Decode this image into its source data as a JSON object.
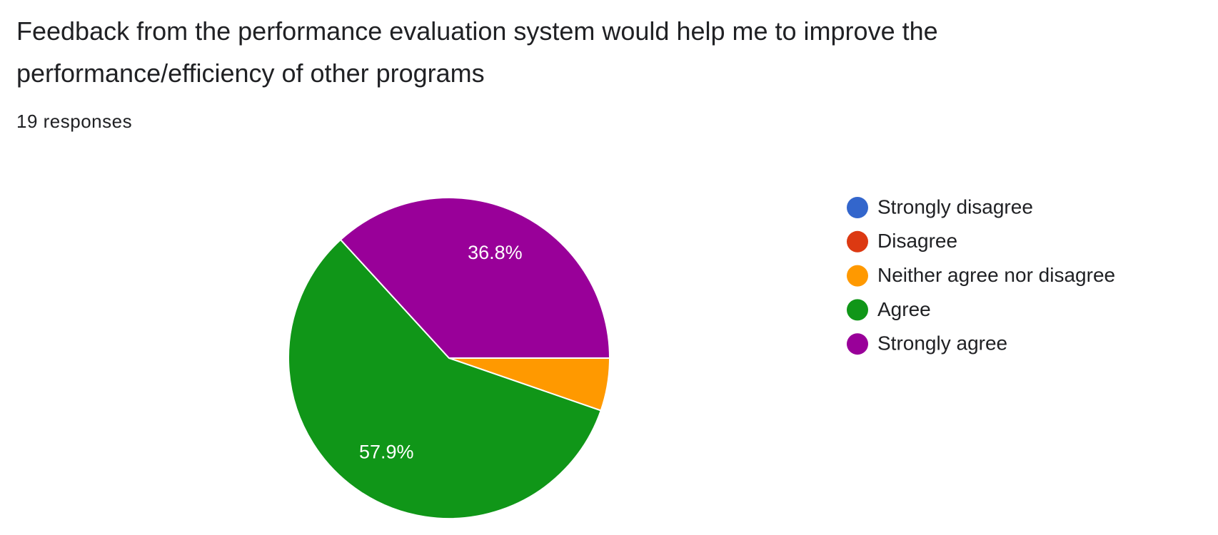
{
  "chart_data": {
    "type": "pie",
    "title": "Feedback from the performance evaluation system would help me to improve the performance/efficiency of other programs",
    "subtitle": "19 responses",
    "categories": [
      "Strongly disagree",
      "Disagree",
      "Neither agree nor disagree",
      "Agree",
      "Strongly agree"
    ],
    "values": [
      0,
      0,
      5.3,
      57.9,
      36.8
    ],
    "value_labels": [
      null,
      null,
      null,
      "57.9%",
      "36.8%"
    ],
    "colors": [
      "#3366cc",
      "#dc3912",
      "#ff9900",
      "#109618",
      "#990099"
    ],
    "legend": "right"
  }
}
